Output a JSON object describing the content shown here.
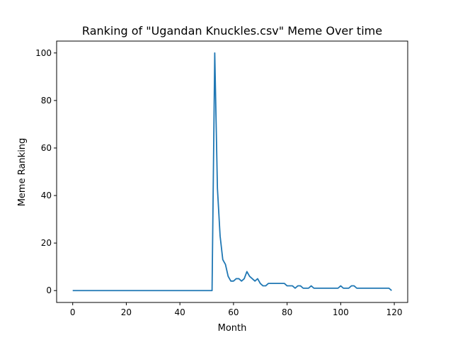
{
  "chart_data": {
    "type": "line",
    "title": "Ranking of \"Ugandan Knuckles.csv\" Meme Over time",
    "xlabel": "Month",
    "ylabel": "Meme Ranking",
    "xlim": [
      -6,
      125
    ],
    "ylim": [
      -5,
      105
    ],
    "xticks": [
      0,
      20,
      40,
      60,
      80,
      100,
      120
    ],
    "yticks": [
      0,
      20,
      40,
      60,
      80,
      100
    ],
    "grid": false,
    "line_color": "#1f77b4",
    "series": [
      {
        "x": [
          0,
          1,
          2,
          3,
          4,
          5,
          6,
          7,
          8,
          9,
          10,
          11,
          12,
          13,
          14,
          15,
          16,
          17,
          18,
          19,
          20,
          21,
          22,
          23,
          24,
          25,
          26,
          27,
          28,
          29,
          30,
          31,
          32,
          33,
          34,
          35,
          36,
          37,
          38,
          39,
          40,
          41,
          42,
          43,
          44,
          45,
          46,
          47,
          48,
          49,
          50,
          51,
          52,
          53,
          54,
          55,
          56,
          57,
          58,
          59,
          60,
          61,
          62,
          63,
          64,
          65,
          66,
          67,
          68,
          69,
          70,
          71,
          72,
          73,
          74,
          75,
          76,
          77,
          78,
          79,
          80,
          81,
          82,
          83,
          84,
          85,
          86,
          87,
          88,
          89,
          90,
          91,
          92,
          93,
          94,
          95,
          96,
          97,
          98,
          99,
          100,
          101,
          102,
          103,
          104,
          105,
          106,
          107,
          108,
          109,
          110,
          111,
          112,
          113,
          114,
          115,
          116,
          117,
          118,
          119
        ],
        "y": [
          0,
          0,
          0,
          0,
          0,
          0,
          0,
          0,
          0,
          0,
          0,
          0,
          0,
          0,
          0,
          0,
          0,
          0,
          0,
          0,
          0,
          0,
          0,
          0,
          0,
          0,
          0,
          0,
          0,
          0,
          0,
          0,
          0,
          0,
          0,
          0,
          0,
          0,
          0,
          0,
          0,
          0,
          0,
          0,
          0,
          0,
          0,
          0,
          0,
          0,
          0,
          0,
          0,
          100,
          43,
          23,
          13,
          11,
          6,
          4,
          4,
          5,
          5,
          4,
          5,
          8,
          6,
          5,
          4,
          5,
          3,
          2,
          2,
          3,
          3,
          3,
          3,
          3,
          3,
          3,
          2,
          2,
          2,
          1,
          2,
          2,
          1,
          1,
          1,
          2,
          1,
          1,
          1,
          1,
          1,
          1,
          1,
          1,
          1,
          1,
          2,
          1,
          1,
          1,
          2,
          2,
          1,
          1,
          1,
          1,
          1,
          1,
          1,
          1,
          1,
          1,
          1,
          1,
          1,
          0
        ]
      }
    ]
  }
}
